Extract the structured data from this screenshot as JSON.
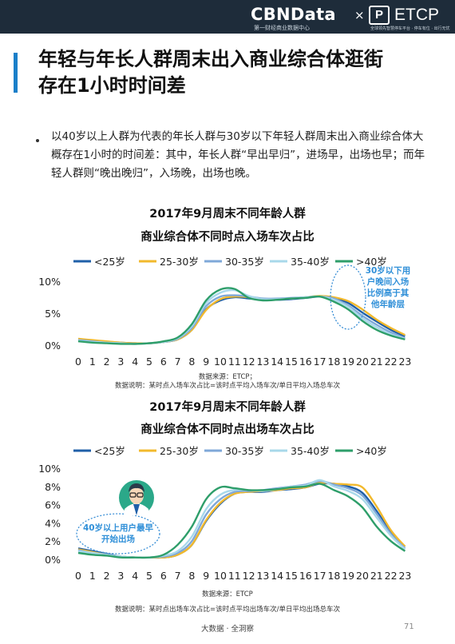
{
  "header": {
    "brand": "CBNData",
    "brand_sub": "第一财经商业数据中心",
    "separator": "×",
    "partner": "ETCP",
    "partner_sub": "全球领先智慧停车平台 · 停车有位 · 出行无忧"
  },
  "page": {
    "title_line1": "年轻与年长人群周末出入商业综合体逛街",
    "title_line2": "存在1小时时间差",
    "bullet": "以40岁以上人群为代表的年长人群与30岁以下年轻人群周末出入商业综合体大概存在1小时的时间差：其中，年长人群“早出早归”，进场早，出场也早；而年轻人群则“晚出晚归”，入场晚，出场也晚。",
    "footer": "大数据 · 全洞察",
    "page_number": "71"
  },
  "colors": {
    "header_bg": "#1e2c3a",
    "accent": "#1a7fc9",
    "annotation": "#2f8fd8"
  },
  "icons": [
    "person-avatar-icon",
    "brand-logo-icon"
  ],
  "chart_data": [
    {
      "type": "line",
      "title_line1": "2017年9月周末不同年龄人群",
      "title_line2": "商业综合体不同时点入场车次占比",
      "source": "数据来源：ETCP；",
      "note": "数据说明：某时点入场车次占比=该时点平均入场车次/单日平均入场总车次",
      "x": [
        0,
        1,
        2,
        3,
        4,
        5,
        6,
        7,
        8,
        9,
        10,
        11,
        12,
        13,
        14,
        15,
        16,
        17,
        18,
        19,
        20,
        21,
        22,
        23
      ],
      "y_ticks": [
        "0%",
        "5%",
        "10%"
      ],
      "ylim": [
        0,
        10
      ],
      "grid": false,
      "legend_position": "top",
      "annotation": "30岁以下用户晚间入场比例高于其他年龄层",
      "series": [
        {
          "name": "<25岁",
          "color": "#1f5fa8",
          "values": [
            0.9,
            0.7,
            0.5,
            0.4,
            0.3,
            0.3,
            0.5,
            0.9,
            2.4,
            5.6,
            7.0,
            7.5,
            7.3,
            7.1,
            7.1,
            7.2,
            7.4,
            7.6,
            7.4,
            6.6,
            5.1,
            3.7,
            2.4,
            1.4
          ]
        },
        {
          "name": "25-30岁",
          "color": "#f2b92c",
          "values": [
            1.0,
            0.8,
            0.6,
            0.4,
            0.3,
            0.3,
            0.5,
            0.9,
            2.4,
            5.5,
            7.2,
            7.6,
            7.5,
            7.2,
            7.2,
            7.3,
            7.5,
            7.7,
            7.5,
            6.9,
            5.6,
            4.0,
            2.7,
            1.6
          ]
        },
        {
          "name": "30-35岁",
          "color": "#7fa8d8",
          "values": [
            0.8,
            0.6,
            0.4,
            0.3,
            0.2,
            0.3,
            0.5,
            1.0,
            2.7,
            6.1,
            7.6,
            7.8,
            7.6,
            7.3,
            7.3,
            7.4,
            7.5,
            7.6,
            7.3,
            6.2,
            4.6,
            3.2,
            2.0,
            1.1
          ]
        },
        {
          "name": "35-40岁",
          "color": "#a8d8ea",
          "values": [
            0.7,
            0.5,
            0.4,
            0.3,
            0.2,
            0.3,
            0.5,
            1.1,
            3.0,
            6.6,
            8.2,
            8.6,
            7.7,
            7.2,
            7.2,
            7.3,
            7.5,
            7.6,
            7.1,
            6.0,
            4.2,
            2.8,
            1.7,
            1.0
          ]
        },
        {
          "name": ">40岁",
          "color": "#2e9e6a",
          "values": [
            0.6,
            0.4,
            0.3,
            0.2,
            0.2,
            0.3,
            0.6,
            1.2,
            3.3,
            7.0,
            8.7,
            8.8,
            7.4,
            7.0,
            7.1,
            7.3,
            7.4,
            7.6,
            6.8,
            5.6,
            3.8,
            2.4,
            1.5,
            0.9
          ]
        }
      ]
    },
    {
      "type": "line",
      "title_line1": "2017年9月周末不同年龄人群",
      "title_line2": "商业综合体不同时点出场车次占比",
      "source": "数据来源：ETCP",
      "note": "数据说明：某时点出场车次占比=该时点平均出场车次/单日平均出场总车次",
      "x": [
        0,
        1,
        2,
        3,
        4,
        5,
        6,
        7,
        8,
        9,
        10,
        11,
        12,
        13,
        14,
        15,
        16,
        17,
        18,
        19,
        20,
        21,
        22,
        23
      ],
      "y_ticks": [
        "0%",
        "2%",
        "4%",
        "6%",
        "8%",
        "10%"
      ],
      "ylim": [
        0,
        10
      ],
      "grid": false,
      "legend_position": "top",
      "annotation": "40岁以上用户最早开始出场",
      "series": [
        {
          "name": "<25岁",
          "color": "#1f5fa8",
          "values": [
            1.2,
            0.9,
            0.6,
            0.3,
            0.2,
            0.2,
            0.2,
            0.5,
            1.6,
            4.2,
            6.1,
            7.2,
            7.4,
            7.4,
            7.6,
            7.7,
            7.9,
            8.3,
            8.3,
            8.0,
            7.3,
            5.3,
            3.0,
            1.4
          ]
        },
        {
          "name": "25-30岁",
          "color": "#f2b92c",
          "values": [
            1.1,
            0.8,
            0.5,
            0.3,
            0.2,
            0.2,
            0.2,
            0.5,
            1.6,
            4.3,
            6.2,
            7.2,
            7.4,
            7.5,
            7.6,
            7.8,
            7.9,
            8.4,
            8.3,
            8.2,
            7.9,
            5.8,
            3.2,
            1.4
          ]
        },
        {
          "name": "30-35岁",
          "color": "#7fa8d8",
          "values": [
            1.0,
            0.7,
            0.5,
            0.3,
            0.2,
            0.2,
            0.3,
            0.7,
            2.0,
            4.9,
            6.6,
            7.4,
            7.5,
            7.6,
            7.8,
            8.0,
            8.2,
            8.6,
            8.2,
            7.8,
            7.0,
            5.0,
            2.8,
            1.2
          ]
        },
        {
          "name": "35-40岁",
          "color": "#a8d8ea",
          "values": [
            0.9,
            0.7,
            0.5,
            0.3,
            0.2,
            0.2,
            0.4,
            0.9,
            2.5,
            5.5,
            7.1,
            7.6,
            7.6,
            7.5,
            7.7,
            8.0,
            8.1,
            8.7,
            8.0,
            7.5,
            6.6,
            4.6,
            2.6,
            1.1
          ]
        },
        {
          "name": ">40岁",
          "color": "#2e9e6a",
          "values": [
            0.7,
            0.5,
            0.4,
            0.2,
            0.2,
            0.2,
            0.5,
            1.6,
            3.6,
            6.6,
            7.9,
            7.8,
            7.6,
            7.6,
            7.7,
            7.9,
            8.0,
            8.3,
            7.6,
            6.9,
            5.7,
            3.6,
            2.0,
            0.9
          ]
        }
      ]
    }
  ]
}
